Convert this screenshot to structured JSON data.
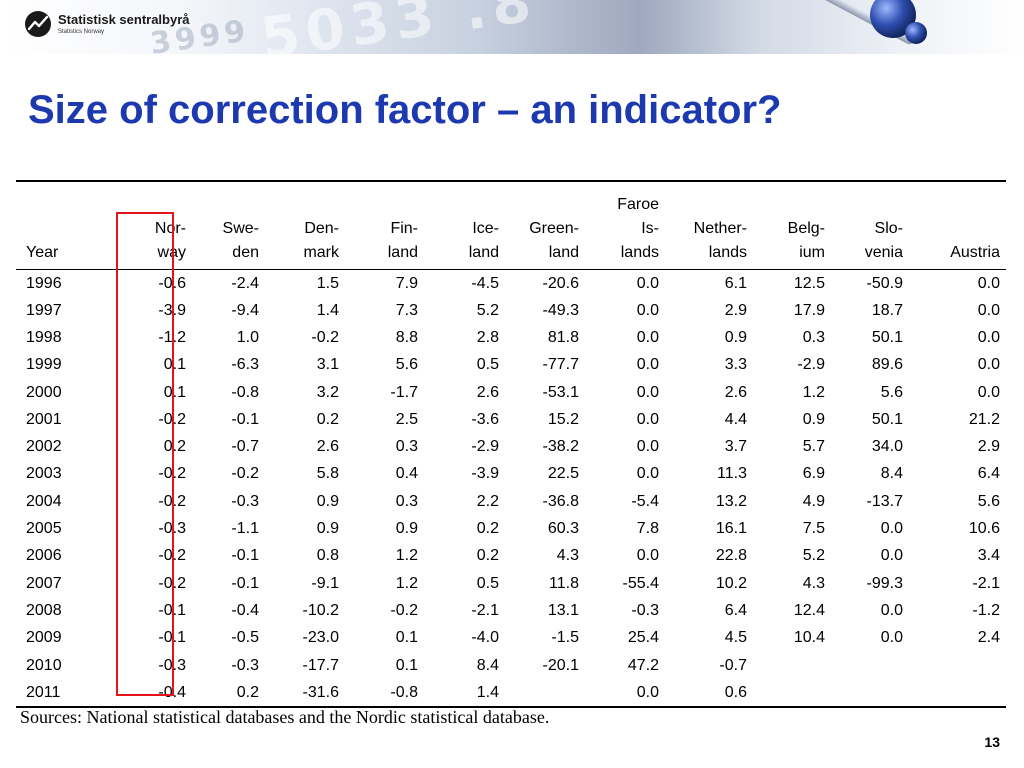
{
  "logo": {
    "name": "Statistisk sentralbyrå",
    "subtitle": "Statistics Norway"
  },
  "title": "Size of correction factor – an indicator?",
  "table": {
    "headers": [
      "Year",
      "Nor-\nway",
      "Swe-\nden",
      "Den-\nmark",
      "Fin-\nland",
      "Ice-\nland",
      "Green-\nland",
      "Faroe\nIs-\nlands",
      "Nether-\nlands",
      "Belg-\nium",
      "Slo-\nvenia",
      "Austria"
    ],
    "rows": [
      [
        "1996",
        "-0.6",
        "-2.4",
        "1.5",
        "7.9",
        "-4.5",
        "-20.6",
        "0.0",
        "6.1",
        "12.5",
        "-50.9",
        "0.0"
      ],
      [
        "1997",
        "-3.9",
        "-9.4",
        "1.4",
        "7.3",
        "5.2",
        "-49.3",
        "0.0",
        "2.9",
        "17.9",
        "18.7",
        "0.0"
      ],
      [
        "1998",
        "-1.2",
        "1.0",
        "-0.2",
        "8.8",
        "2.8",
        "81.8",
        "0.0",
        "0.9",
        "0.3",
        "50.1",
        "0.0"
      ],
      [
        "1999",
        "0.1",
        "-6.3",
        "3.1",
        "5.6",
        "0.5",
        "-77.7",
        "0.0",
        "3.3",
        "-2.9",
        "89.6",
        "0.0"
      ],
      [
        "2000",
        "0.1",
        "-0.8",
        "3.2",
        "-1.7",
        "2.6",
        "-53.1",
        "0.0",
        "2.6",
        "1.2",
        "5.6",
        "0.0"
      ],
      [
        "2001",
        "-0.2",
        "-0.1",
        "0.2",
        "2.5",
        "-3.6",
        "15.2",
        "0.0",
        "4.4",
        "0.9",
        "50.1",
        "21.2"
      ],
      [
        "2002",
        "0.2",
        "-0.7",
        "2.6",
        "0.3",
        "-2.9",
        "-38.2",
        "0.0",
        "3.7",
        "5.7",
        "34.0",
        "2.9"
      ],
      [
        "2003",
        "-0.2",
        "-0.2",
        "5.8",
        "0.4",
        "-3.9",
        "22.5",
        "0.0",
        "11.3",
        "6.9",
        "8.4",
        "6.4"
      ],
      [
        "2004",
        "-0.2",
        "-0.3",
        "0.9",
        "0.3",
        "2.2",
        "-36.8",
        "-5.4",
        "13.2",
        "4.9",
        "-13.7",
        "5.6"
      ],
      [
        "2005",
        "-0.3",
        "-1.1",
        "0.9",
        "0.9",
        "0.2",
        "60.3",
        "7.8",
        "16.1",
        "7.5",
        "0.0",
        "10.6"
      ],
      [
        "2006",
        "-0.2",
        "-0.1",
        "0.8",
        "1.2",
        "0.2",
        "4.3",
        "0.0",
        "22.8",
        "5.2",
        "0.0",
        "3.4"
      ],
      [
        "2007",
        "-0.2",
        "-0.1",
        "-9.1",
        "1.2",
        "0.5",
        "11.8",
        "-55.4",
        "10.2",
        "4.3",
        "-99.3",
        "-2.1"
      ],
      [
        "2008",
        "-0.1",
        "-0.4",
        "-10.2",
        "-0.2",
        "-2.1",
        "13.1",
        "-0.3",
        "6.4",
        "12.4",
        "0.0",
        "-1.2"
      ],
      [
        "2009",
        "-0.1",
        "-0.5",
        "-23.0",
        "0.1",
        "-4.0",
        "-1.5",
        "25.4",
        "4.5",
        "10.4",
        "0.0",
        "2.4"
      ],
      [
        "2010",
        "-0.3",
        "-0.3",
        "-17.7",
        "0.1",
        "8.4",
        "-20.1",
        "47.2",
        "-0.7",
        "",
        "",
        ""
      ],
      [
        "2011",
        "-0.4",
        "0.2",
        "-31.6",
        "-0.8",
        "1.4",
        "",
        "0.0",
        "0.6",
        "",
        "",
        ""
      ]
    ]
  },
  "highlight_color": "#e3141a",
  "title_color": "#1d39b0",
  "sources": "Sources:  National statistical databases and the Nordic statistical database.",
  "page_number": "13"
}
